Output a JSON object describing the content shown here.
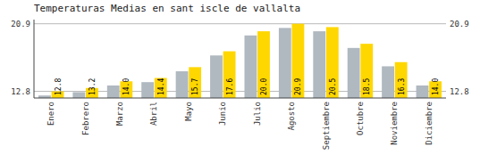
{
  "chart_data": {
    "type": "bar",
    "title": "Temperaturas Medias en sant iscle de vallalta",
    "categories": [
      "Enero",
      "Febrero",
      "Marzo",
      "Abril",
      "Mayo",
      "Junio",
      "Julio",
      "Agosto",
      "Septiembre",
      "Octubre",
      "Noviembre",
      "Diciembre"
    ],
    "series": [
      {
        "color": "#B0B8C0",
        "values": [
          12.3,
          12.7,
          13.5,
          13.9,
          15.2,
          17.1,
          19.5,
          20.4,
          20.0,
          18.0,
          15.8,
          13.5
        ]
      },
      {
        "color": "#FFD700",
        "values": [
          12.8,
          13.2,
          14.0,
          14.4,
          15.7,
          17.6,
          20.0,
          20.9,
          20.5,
          18.5,
          16.3,
          14.0
        ],
        "value_labels": [
          "12.8",
          "13.2",
          "14.0",
          "14.4",
          "15.7",
          "17.6",
          "20.0",
          "20.9",
          "20.5",
          "18.5",
          "16.3",
          "14.0"
        ],
        "data_labels": true
      }
    ],
    "ylim": [
      12.0,
      21.4
    ],
    "yticks": [
      12.8,
      20.9
    ],
    "grid": true
  }
}
